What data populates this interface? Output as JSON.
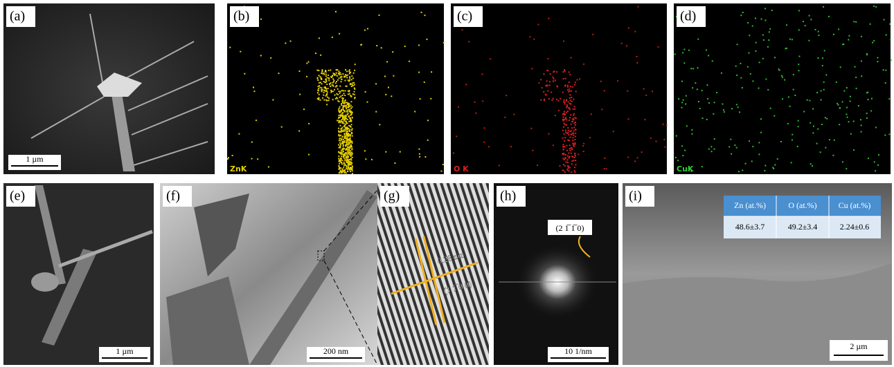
{
  "panels": [
    {
      "label": "(a)",
      "scale_bar": "1 µm"
    },
    {
      "label": "(b)",
      "element": "ZnK"
    },
    {
      "label": "(c)",
      "element": "O K"
    },
    {
      "label": "(d)",
      "element": "CuK"
    },
    {
      "label": "(e)",
      "scale_bar": "1 µm"
    },
    {
      "label": "(f)",
      "scale_bar": "200 nm"
    },
    {
      "label": "(g)",
      "spacing": "0.28 nm",
      "plane": "(1 1̅ 0 0)"
    },
    {
      "label": "(h)",
      "plane": "(2 1̅ 1̅ 0)",
      "scale_bar": "10 1/nm"
    },
    {
      "label": "(i)",
      "scale_bar": "2 µm"
    }
  ],
  "table": {
    "headers": [
      "Zn (at.%)",
      "O (at.%)",
      "Cu (at.%)"
    ],
    "rows": [
      [
        "48.6±3.7",
        "49.2±3.4",
        "2.24±0.6"
      ]
    ]
  }
}
